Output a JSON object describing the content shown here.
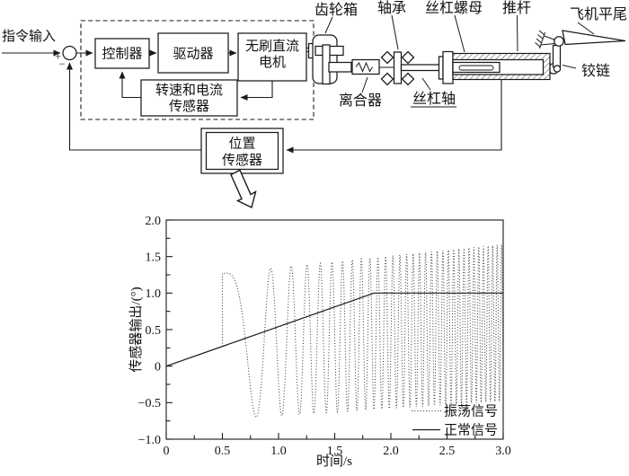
{
  "figure": {
    "input_label": "指令输入",
    "sum": {
      "plus": "+",
      "minus": "−"
    },
    "blocks": {
      "controller": "控制器",
      "driver": "驱动器",
      "motor_line1": "无刷直流",
      "motor_line2": "电机",
      "rpm_sensor_line1": "转速和电流",
      "rpm_sensor_line2": "传感器",
      "pos_sensor_line1": "位置",
      "pos_sensor_line2": "传感器"
    },
    "parts": {
      "gearbox": "齿轮箱",
      "bearing": "轴承",
      "screw_nut": "丝杠螺母",
      "push_rod": "推杆",
      "tail": "飞机平尾",
      "hinge": "铰链",
      "clutch": "离合器",
      "screw_shaft": "丝杠轴"
    }
  },
  "chart_data": {
    "type": "line",
    "title": "",
    "xlabel": "时间/s",
    "ylabel": "传感器输出/(°)",
    "xlim": [
      0,
      3.0
    ],
    "ylim": [
      -1.0,
      2.0
    ],
    "x_ticks": [
      0,
      0.5,
      1.0,
      1.5,
      2.0,
      2.5,
      3.0
    ],
    "x_tick_labels": [
      "0",
      "0.5",
      "1.0",
      "1.5",
      "2.0",
      "2.5",
      "3.0"
    ],
    "x_minor_step": 0.25,
    "y_ticks": [
      -1.0,
      -0.5,
      0,
      0.5,
      1.0,
      1.5,
      2.0
    ],
    "y_tick_labels": [
      "−1.0",
      "−0.5",
      "0",
      "0.5",
      "1.0",
      "1.5",
      "2.0"
    ],
    "y_minor_step": 0.25,
    "grid": false,
    "axis_box": true,
    "legend_position": "lower right",
    "legend": [
      "振荡信号",
      "正常信号"
    ],
    "series": [
      {
        "name": "正常信号",
        "style": "solid",
        "points": [
          [
            0,
            0
          ],
          [
            1.85,
            1.0
          ],
          [
            3.0,
            1.0
          ]
        ]
      },
      {
        "name": "振荡信号",
        "style": "dotted",
        "description": "Accelerating chirp oscillation superimposed on the command ramp: starts at t=0.5 s with a jump from 0.27 up to 1.27, swings to −0.70 at t≈0.8 s, frequency sweeps from ~1 Hz to ~25 Hz by t=3 s while the envelope grows to ≈ +1.65 / −0.48 about a centre drifting 0.27→0.60",
        "chirp": {
          "t_start": 0.5,
          "t_end": 3.0,
          "f0": 0.12,
          "f_slope": 10.26,
          "center0": 0.27,
          "center_slope": 0.13,
          "amp0": 1.0,
          "amp_slope": 0.03
        }
      }
    ]
  }
}
